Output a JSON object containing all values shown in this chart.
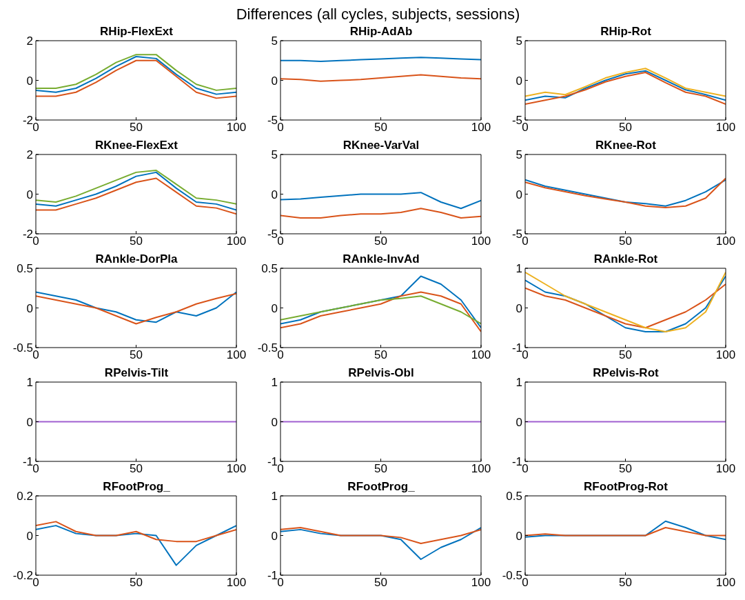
{
  "chart_data": [
    {
      "type": "line",
      "title": "RHip-FlexExt",
      "annotations": [
        "Differences (all cycles, subjects, sessions)"
      ],
      "x": [
        0,
        10,
        20,
        30,
        40,
        50,
        60,
        70,
        80,
        90,
        100
      ],
      "xlim": [
        0,
        100
      ],
      "xticks": [
        0,
        50,
        100
      ],
      "ylim": [
        -2,
        2
      ],
      "yticks": [
        -2,
        0,
        2
      ],
      "series": [
        {
          "color": "#0072bd",
          "values": [
            -0.5,
            -0.6,
            -0.4,
            0.1,
            0.7,
            1.2,
            1.1,
            0.3,
            -0.4,
            -0.7,
            -0.6
          ]
        },
        {
          "color": "#d95319",
          "values": [
            -0.8,
            -0.8,
            -0.6,
            -0.1,
            0.5,
            1.0,
            1.0,
            0.2,
            -0.6,
            -0.9,
            -0.8
          ]
        },
        {
          "color": "#77ac30",
          "values": [
            -0.4,
            -0.4,
            -0.2,
            0.3,
            0.9,
            1.3,
            1.3,
            0.5,
            -0.2,
            -0.5,
            -0.4
          ]
        }
      ]
    },
    {
      "type": "line",
      "title": "RHip-AdAb",
      "x": [
        0,
        10,
        20,
        30,
        40,
        50,
        60,
        70,
        80,
        90,
        100
      ],
      "xlim": [
        0,
        100
      ],
      "xticks": [
        0,
        50,
        100
      ],
      "ylim": [
        -5,
        5
      ],
      "yticks": [
        -5,
        0,
        5
      ],
      "series": [
        {
          "color": "#0072bd",
          "values": [
            2.5,
            2.5,
            2.4,
            2.5,
            2.6,
            2.7,
            2.8,
            2.9,
            2.8,
            2.7,
            2.6
          ]
        },
        {
          "color": "#d95319",
          "values": [
            0.2,
            0.1,
            -0.1,
            0,
            0.1,
            0.3,
            0.5,
            0.7,
            0.5,
            0.3,
            0.2
          ]
        }
      ]
    },
    {
      "type": "line",
      "title": "RHip-Rot",
      "x": [
        0,
        10,
        20,
        30,
        40,
        50,
        60,
        70,
        80,
        90,
        100
      ],
      "xlim": [
        0,
        100
      ],
      "xticks": [
        0,
        50,
        100
      ],
      "ylim": [
        -5,
        5
      ],
      "yticks": [
        -5,
        0,
        5
      ],
      "series": [
        {
          "color": "#0072bd",
          "values": [
            -2.5,
            -2,
            -2.2,
            -1,
            0,
            0.8,
            1.2,
            0,
            -1.2,
            -1.8,
            -2.5
          ]
        },
        {
          "color": "#d95319",
          "values": [
            -3,
            -2.5,
            -2,
            -1.2,
            -0.2,
            0.5,
            1,
            -0.3,
            -1.5,
            -2,
            -3
          ]
        },
        {
          "color": "#edb120",
          "values": [
            -2,
            -1.5,
            -1.8,
            -0.8,
            0.3,
            1,
            1.5,
            0.3,
            -1,
            -1.5,
            -2
          ]
        }
      ]
    },
    {
      "type": "line",
      "title": "RKnee-FlexExt",
      "x": [
        0,
        10,
        20,
        30,
        40,
        50,
        60,
        70,
        80,
        90,
        100
      ],
      "xlim": [
        0,
        100
      ],
      "xticks": [
        0,
        50,
        100
      ],
      "ylim": [
        -2,
        2
      ],
      "yticks": [
        -2,
        0,
        2
      ],
      "series": [
        {
          "color": "#0072bd",
          "values": [
            -0.5,
            -0.6,
            -0.3,
            0,
            0.4,
            0.9,
            1.1,
            0.3,
            -0.4,
            -0.5,
            -0.8
          ]
        },
        {
          "color": "#d95319",
          "values": [
            -0.8,
            -0.8,
            -0.5,
            -0.2,
            0.2,
            0.6,
            0.8,
            0.1,
            -0.6,
            -0.7,
            -1
          ]
        },
        {
          "color": "#77ac30",
          "values": [
            -0.3,
            -0.4,
            -0.1,
            0.3,
            0.7,
            1.1,
            1.2,
            0.5,
            -0.2,
            -0.3,
            -0.5
          ]
        }
      ]
    },
    {
      "type": "line",
      "title": "RKnee-VarVal",
      "x": [
        0,
        10,
        20,
        30,
        40,
        50,
        60,
        70,
        80,
        90,
        100
      ],
      "xlim": [
        0,
        100
      ],
      "xticks": [
        0,
        50,
        100
      ],
      "ylim": [
        -5,
        5
      ],
      "yticks": [
        -5,
        0,
        5
      ],
      "series": [
        {
          "color": "#0072bd",
          "values": [
            -0.7,
            -0.6,
            -0.4,
            -0.2,
            0,
            0,
            0,
            0.2,
            -1,
            -1.8,
            -0.8
          ]
        },
        {
          "color": "#d95319",
          "values": [
            -2.7,
            -3,
            -3,
            -2.7,
            -2.5,
            -2.5,
            -2.3,
            -1.8,
            -2.3,
            -3,
            -2.8
          ]
        }
      ]
    },
    {
      "type": "line",
      "title": "RKnee-Rot",
      "x": [
        0,
        10,
        20,
        30,
        40,
        50,
        60,
        70,
        80,
        90,
        100
      ],
      "xlim": [
        0,
        100
      ],
      "xticks": [
        0,
        50,
        100
      ],
      "ylim": [
        -5,
        5
      ],
      "yticks": [
        -5,
        0,
        5
      ],
      "series": [
        {
          "color": "#0072bd",
          "values": [
            1.8,
            1,
            0.5,
            0,
            -0.5,
            -1,
            -1.2,
            -1.5,
            -0.8,
            0.3,
            1.8
          ]
        },
        {
          "color": "#d95319",
          "values": [
            1.5,
            0.8,
            0.3,
            -0.2,
            -0.6,
            -1,
            -1.5,
            -1.7,
            -1.5,
            -0.5,
            2
          ]
        }
      ]
    },
    {
      "type": "line",
      "title": "RAnkle-DorPla",
      "x": [
        0,
        10,
        20,
        30,
        40,
        50,
        60,
        70,
        80,
        90,
        100
      ],
      "xlim": [
        0,
        100
      ],
      "xticks": [
        0,
        50,
        100
      ],
      "ylim": [
        -0.5,
        0.5
      ],
      "yticks": [
        -0.5,
        0,
        0.5
      ],
      "series": [
        {
          "color": "#0072bd",
          "values": [
            0.2,
            0.15,
            0.1,
            0,
            -0.05,
            -0.15,
            -0.18,
            -0.05,
            -0.1,
            0,
            0.2
          ]
        },
        {
          "color": "#d95319",
          "values": [
            0.15,
            0.1,
            0.05,
            0,
            -0.1,
            -0.2,
            -0.12,
            -0.05,
            0.05,
            0.12,
            0.18
          ]
        }
      ]
    },
    {
      "type": "line",
      "title": "RAnkle-InvAd",
      "x": [
        0,
        10,
        20,
        30,
        40,
        50,
        60,
        70,
        80,
        90,
        100
      ],
      "xlim": [
        0,
        100
      ],
      "xticks": [
        0,
        50,
        100
      ],
      "ylim": [
        -0.5,
        0.5
      ],
      "yticks": [
        -0.5,
        0,
        0.5
      ],
      "series": [
        {
          "color": "#0072bd",
          "values": [
            -0.2,
            -0.15,
            -0.05,
            0,
            0.05,
            0.1,
            0.15,
            0.4,
            0.3,
            0.1,
            -0.25
          ]
        },
        {
          "color": "#d95319",
          "values": [
            -0.25,
            -0.2,
            -0.1,
            -0.05,
            0,
            0.05,
            0.15,
            0.2,
            0.15,
            0.05,
            -0.3
          ]
        },
        {
          "color": "#77ac30",
          "values": [
            -0.15,
            -0.1,
            -0.05,
            0,
            0.05,
            0.1,
            0.12,
            0.15,
            0.05,
            -0.05,
            -0.2
          ]
        }
      ]
    },
    {
      "type": "line",
      "title": "RAnkle-Rot",
      "x": [
        0,
        10,
        20,
        30,
        40,
        50,
        60,
        70,
        80,
        90,
        100
      ],
      "xlim": [
        0,
        100
      ],
      "xticks": [
        0,
        50,
        100
      ],
      "ylim": [
        -1,
        1
      ],
      "yticks": [
        -1,
        0,
        1
      ],
      "series": [
        {
          "color": "#0072bd",
          "values": [
            0.7,
            0.4,
            0.3,
            0.1,
            -0.2,
            -0.5,
            -0.6,
            -0.6,
            -0.4,
            0,
            0.8
          ]
        },
        {
          "color": "#d95319",
          "values": [
            0.5,
            0.3,
            0.2,
            0,
            -0.2,
            -0.4,
            -0.5,
            -0.3,
            -0.1,
            0.2,
            0.6
          ]
        },
        {
          "color": "#edb120",
          "values": [
            0.9,
            0.6,
            0.3,
            0.1,
            -0.1,
            -0.3,
            -0.5,
            -0.6,
            -0.5,
            -0.1,
            0.9
          ]
        }
      ]
    },
    {
      "type": "line",
      "title": "RPelvis-Tilt",
      "x": [
        0,
        100
      ],
      "xlim": [
        0,
        100
      ],
      "xticks": [
        0,
        50,
        100
      ],
      "ylim": [
        -1,
        1
      ],
      "yticks": [
        -1,
        0,
        1
      ],
      "series": [
        {
          "color": "#a05fd0",
          "values": [
            0,
            0
          ]
        }
      ]
    },
    {
      "type": "line",
      "title": "RPelvis-Obl",
      "x": [
        0,
        100
      ],
      "xlim": [
        0,
        100
      ],
      "xticks": [
        0,
        50,
        100
      ],
      "ylim": [
        -1,
        1
      ],
      "yticks": [
        -1,
        0,
        1
      ],
      "series": [
        {
          "color": "#a05fd0",
          "values": [
            0,
            0
          ]
        }
      ]
    },
    {
      "type": "line",
      "title": "RPelvis-Rot",
      "x": [
        0,
        100
      ],
      "xlim": [
        0,
        100
      ],
      "xticks": [
        0,
        50,
        100
      ],
      "ylim": [
        -1,
        1
      ],
      "yticks": [
        -1,
        0,
        1
      ],
      "series": [
        {
          "color": "#a05fd0",
          "values": [
            0,
            0
          ]
        }
      ]
    },
    {
      "type": "line",
      "title": "RFootProg_",
      "x": [
        0,
        10,
        20,
        30,
        40,
        50,
        60,
        70,
        80,
        90,
        100
      ],
      "xlim": [
        0,
        100
      ],
      "xticks": [
        0,
        50,
        100
      ],
      "ylim": [
        -0.2,
        0.2
      ],
      "yticks": [
        -0.2,
        0,
        0.2
      ],
      "series": [
        {
          "color": "#0072bd",
          "values": [
            0.03,
            0.05,
            0.01,
            0,
            0,
            0.01,
            0,
            -0.15,
            -0.05,
            0,
            0.05
          ]
        },
        {
          "color": "#d95319",
          "values": [
            0.05,
            0.07,
            0.02,
            0,
            0,
            0.02,
            -0.02,
            -0.03,
            -0.03,
            0,
            0.03
          ]
        }
      ]
    },
    {
      "type": "line",
      "title": "RFootProg_",
      "x": [
        0,
        10,
        20,
        30,
        40,
        50,
        60,
        70,
        80,
        90,
        100
      ],
      "xlim": [
        0,
        100
      ],
      "xticks": [
        0,
        50,
        100
      ],
      "ylim": [
        -1,
        1
      ],
      "yticks": [
        -1,
        0,
        1
      ],
      "series": [
        {
          "color": "#0072bd",
          "values": [
            0.1,
            0.15,
            0.05,
            0,
            0,
            0,
            -0.1,
            -0.6,
            -0.3,
            -0.1,
            0.2
          ]
        },
        {
          "color": "#d95319",
          "values": [
            0.15,
            0.2,
            0.1,
            0,
            0,
            0,
            -0.05,
            -0.2,
            -0.1,
            0,
            0.15
          ]
        }
      ]
    },
    {
      "type": "line",
      "title": "RFootProg-Rot",
      "x": [
        0,
        10,
        20,
        30,
        40,
        50,
        60,
        70,
        80,
        90,
        100
      ],
      "xlim": [
        0,
        100
      ],
      "xticks": [
        0,
        50,
        100
      ],
      "ylim": [
        -0.5,
        0.5
      ],
      "yticks": [
        -0.5,
        0,
        0.5
      ],
      "series": [
        {
          "color": "#0072bd",
          "values": [
            -0.02,
            0,
            0,
            0,
            0,
            0,
            0,
            0.18,
            0.1,
            0,
            -0.05
          ]
        },
        {
          "color": "#d95319",
          "values": [
            0,
            0.02,
            0,
            0,
            0,
            0,
            0,
            0.1,
            0.05,
            0,
            0
          ]
        }
      ]
    }
  ]
}
